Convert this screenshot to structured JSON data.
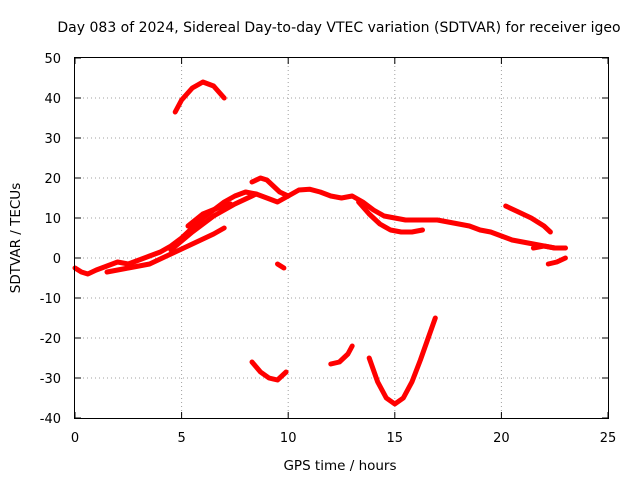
{
  "chart_data": {
    "type": "scatter",
    "title": "Day 083 of 2024, Sidereal Day-to-day VTEC variation (SDTVAR) for receiver igeo",
    "xlabel": "GPS time / hours",
    "ylabel": "SDTVAR / TECUs",
    "xlim": [
      0,
      25
    ],
    "ylim": [
      -40,
      50
    ],
    "xticks": [
      0,
      5,
      10,
      15,
      20,
      25
    ],
    "yticks": [
      -40,
      -30,
      -20,
      -10,
      0,
      10,
      20,
      30,
      40,
      50
    ],
    "grid": true,
    "legend": "none",
    "marker_color": "#ff0000",
    "series": [
      {
        "name": "arc-main",
        "x": [
          0.0,
          0.3,
          0.6,
          1.0,
          1.5,
          2.0,
          2.5,
          3.0,
          3.5,
          4.0,
          4.5,
          5.0,
          5.5,
          6.0,
          6.5,
          7.0,
          7.5,
          8.0,
          8.5,
          9.0,
          9.5,
          10.0,
          10.5,
          11.0,
          11.5,
          12.0,
          12.5,
          13.0,
          13.5,
          14.0,
          14.5,
          15.0,
          15.5,
          16.0,
          16.5,
          17.0,
          17.5,
          18.0,
          18.5,
          19.0,
          19.5,
          20.0,
          20.5,
          21.0,
          21.5,
          22.0,
          22.5,
          23.0
        ],
        "y": [
          -2.5,
          -3.5,
          -4.0,
          -3.0,
          -2.0,
          -1.0,
          -1.5,
          -0.5,
          0.5,
          1.5,
          3.0,
          5.0,
          7.5,
          10.0,
          12.0,
          14.0,
          15.5,
          16.5,
          16.0,
          15.0,
          14.0,
          15.5,
          17.0,
          17.2,
          16.5,
          15.5,
          15.0,
          15.5,
          14.0,
          12.0,
          10.5,
          10.0,
          9.5,
          9.5,
          9.5,
          9.5,
          9.0,
          8.5,
          8.0,
          7.0,
          6.5,
          5.5,
          4.5,
          4.0,
          3.5,
          3.0,
          2.5,
          2.5
        ]
      },
      {
        "name": "arc-lower-band",
        "x": [
          1.5,
          2.5,
          3.5,
          4.5,
          5.5,
          6.5,
          7.0
        ],
        "y": [
          -3.5,
          -2.5,
          -1.5,
          1.0,
          3.5,
          6.0,
          7.5
        ]
      },
      {
        "name": "arc-mid-band",
        "x": [
          4.5,
          5.5,
          6.5,
          7.5,
          8.5
        ],
        "y": [
          2.0,
          6.5,
          10.5,
          13.5,
          16.0
        ]
      },
      {
        "name": "arc-upper-band",
        "x": [
          5.3,
          6.0,
          6.7,
          7.3
        ],
        "y": [
          8.0,
          11.0,
          12.5,
          13.5
        ]
      },
      {
        "name": "arc-dip",
        "x": [
          13.3,
          13.8,
          14.3,
          14.8,
          15.3,
          15.8,
          16.3
        ],
        "y": [
          14.0,
          11.0,
          8.5,
          7.0,
          6.5,
          6.5,
          7.0
        ]
      },
      {
        "name": "arc-hump",
        "x": [
          8.3,
          8.7,
          9.0,
          9.3,
          9.6,
          10.0
        ],
        "y": [
          19.0,
          20.0,
          19.5,
          18.0,
          16.5,
          15.5
        ]
      },
      {
        "name": "arc-upper-right",
        "x": [
          20.2,
          20.8,
          21.4,
          22.0,
          22.3
        ],
        "y": [
          13.0,
          11.5,
          10.0,
          8.0,
          6.5
        ]
      },
      {
        "name": "arc-tail",
        "x": [
          21.5,
          22.0,
          22.5,
          23.0
        ],
        "y": [
          2.5,
          3.0,
          2.5,
          2.5
        ]
      },
      {
        "name": "arc-end-hook",
        "x": [
          22.2,
          22.6,
          23.0
        ],
        "y": [
          -1.5,
          -1.0,
          0.0
        ]
      },
      {
        "name": "arc-peak-40",
        "x": [
          4.7,
          5.0,
          5.5,
          6.0,
          6.5,
          7.0
        ],
        "y": [
          36.5,
          39.5,
          42.5,
          44.0,
          43.0,
          40.0
        ]
      },
      {
        "name": "arc-short",
        "x": [
          9.5,
          9.8
        ],
        "y": [
          -1.5,
          -2.5
        ]
      },
      {
        "name": "arc-neg30",
        "x": [
          8.3,
          8.7,
          9.1,
          9.5,
          9.9
        ],
        "y": [
          -26.0,
          -28.5,
          -30.0,
          -30.5,
          -28.5
        ]
      },
      {
        "name": "arc-neg26",
        "x": [
          12.0,
          12.4,
          12.8,
          13.0
        ],
        "y": [
          -26.5,
          -26.0,
          -24.0,
          -22.0
        ]
      },
      {
        "name": "arc-valley",
        "x": [
          13.8,
          14.2,
          14.6,
          15.0,
          15.4,
          15.8,
          16.2,
          16.6,
          16.9
        ],
        "y": [
          -25.0,
          -31.0,
          -35.0,
          -36.5,
          -35.0,
          -31.0,
          -25.5,
          -19.5,
          -15.0
        ]
      }
    ]
  }
}
